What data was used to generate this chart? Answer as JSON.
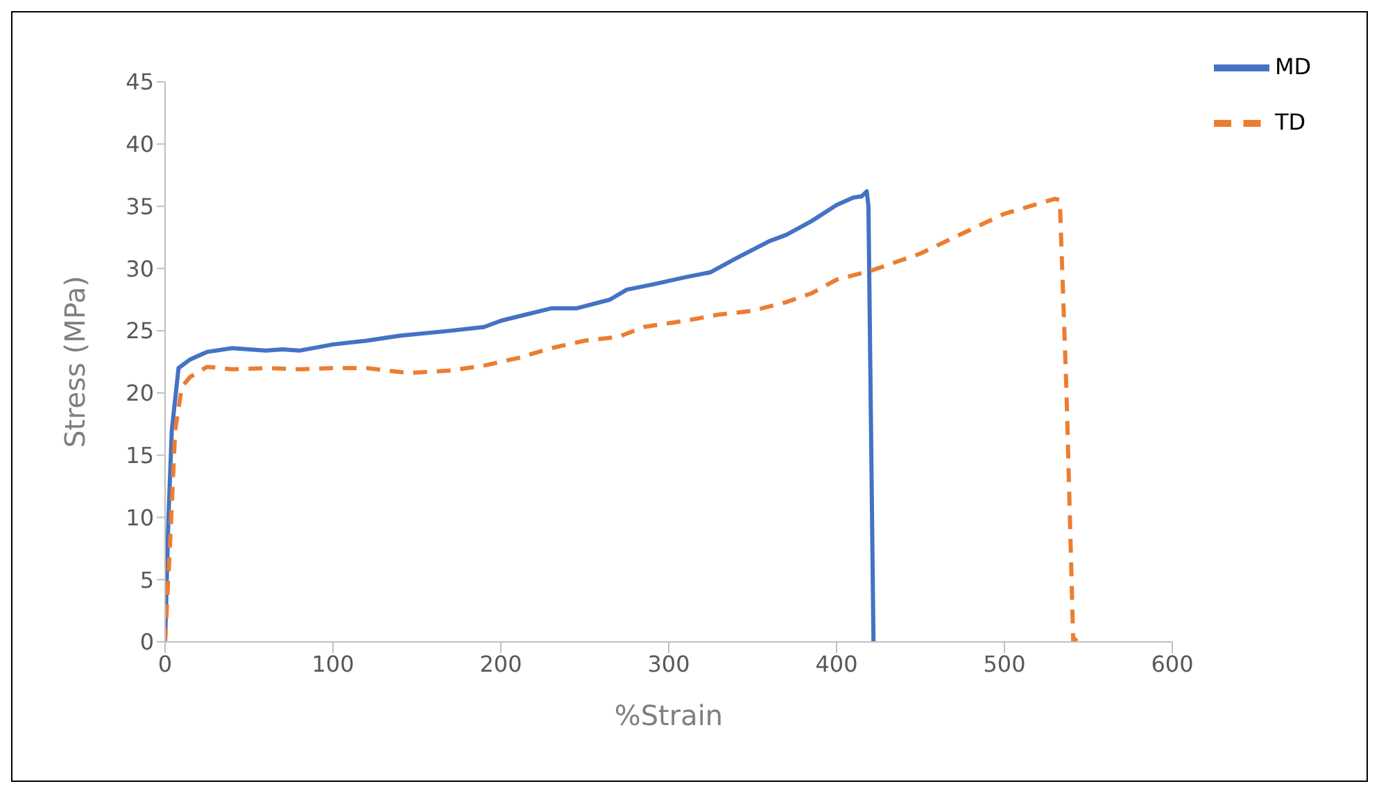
{
  "chart_data": {
    "type": "line",
    "xlabel": "%Strain",
    "ylabel": "Stress (MPa)",
    "xlim": [
      0,
      600
    ],
    "xticks": [
      0,
      100,
      200,
      300,
      400,
      500,
      600
    ],
    "ylim": [
      0,
      45
    ],
    "yticks": [
      0,
      5,
      10,
      15,
      20,
      25,
      30,
      35,
      40,
      45
    ],
    "grid": false,
    "legend": "top right",
    "marker": "none",
    "series": [
      {
        "name": "MD",
        "color": "#4472c4",
        "line_style": "solid",
        "x": [
          0,
          2,
          4,
          8,
          15,
          25,
          40,
          60,
          70,
          80,
          100,
          120,
          140,
          170,
          190,
          200,
          215,
          230,
          245,
          265,
          275,
          290,
          310,
          325,
          340,
          360,
          370,
          385,
          400,
          410,
          415,
          418,
          419,
          422
        ],
        "values": [
          0,
          10,
          17,
          22,
          22.7,
          23.3,
          23.6,
          23.4,
          23.5,
          23.4,
          23.9,
          24.2,
          24.6,
          25,
          25.3,
          25.8,
          26.3,
          26.8,
          26.8,
          27.5,
          28.3,
          28.7,
          29.3,
          29.7,
          30.8,
          32.2,
          32.7,
          33.8,
          35.1,
          35.7,
          35.8,
          36.2,
          35,
          0
        ]
      },
      {
        "name": "TD",
        "color": "#ed7d31",
        "line_style": "dashed",
        "x": [
          0,
          3,
          6,
          10,
          15,
          25,
          40,
          60,
          80,
          100,
          120,
          145,
          170,
          190,
          210,
          230,
          250,
          270,
          285,
          310,
          330,
          350,
          370,
          385,
          400,
          420,
          450,
          470,
          500,
          520,
          530,
          533,
          537,
          541,
          545
        ],
        "values": [
          0,
          8,
          17,
          20.5,
          21.3,
          22.1,
          21.9,
          22,
          21.9,
          22,
          22,
          21.6,
          21.8,
          22.2,
          22.8,
          23.6,
          24.2,
          24.5,
          25.3,
          25.8,
          26.3,
          26.6,
          27.3,
          28,
          29.1,
          29.8,
          31.2,
          32.5,
          34.4,
          35.2,
          35.6,
          35.5,
          20,
          0,
          0.5
        ]
      }
    ]
  }
}
